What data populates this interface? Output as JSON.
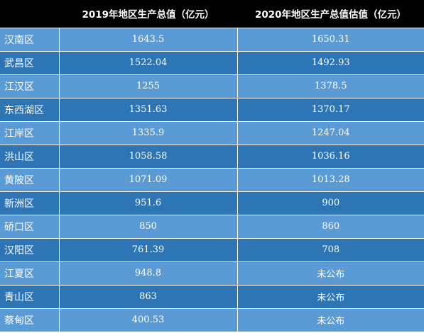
{
  "table": {
    "headers": [
      "",
      "2019年地区生产总值（亿元）",
      "2020年地区生产总值估值（亿元）"
    ],
    "rows": [
      [
        "汉南区",
        "1643.5",
        "1650.31"
      ],
      [
        "武昌区",
        "1522.04",
        "1492.93"
      ],
      [
        "江汉区",
        "1255",
        "1378.5"
      ],
      [
        "东西湖区",
        "1351.63",
        "1370.17"
      ],
      [
        "江岸区",
        "1335.9",
        "1247.04"
      ],
      [
        "洪山区",
        "1058.58",
        "1036.16"
      ],
      [
        "黄陂区",
        "1071.09",
        "1013.28"
      ],
      [
        "新洲区",
        "951.6",
        "900"
      ],
      [
        "硚口区",
        "850",
        "860"
      ],
      [
        "汉阳区",
        "761.39",
        "708"
      ],
      [
        "江夏区",
        "948.8",
        "未公布"
      ],
      [
        "青山区",
        "863",
        "未公布"
      ],
      [
        "蔡甸区",
        "400.53",
        "未公布"
      ]
    ]
  }
}
